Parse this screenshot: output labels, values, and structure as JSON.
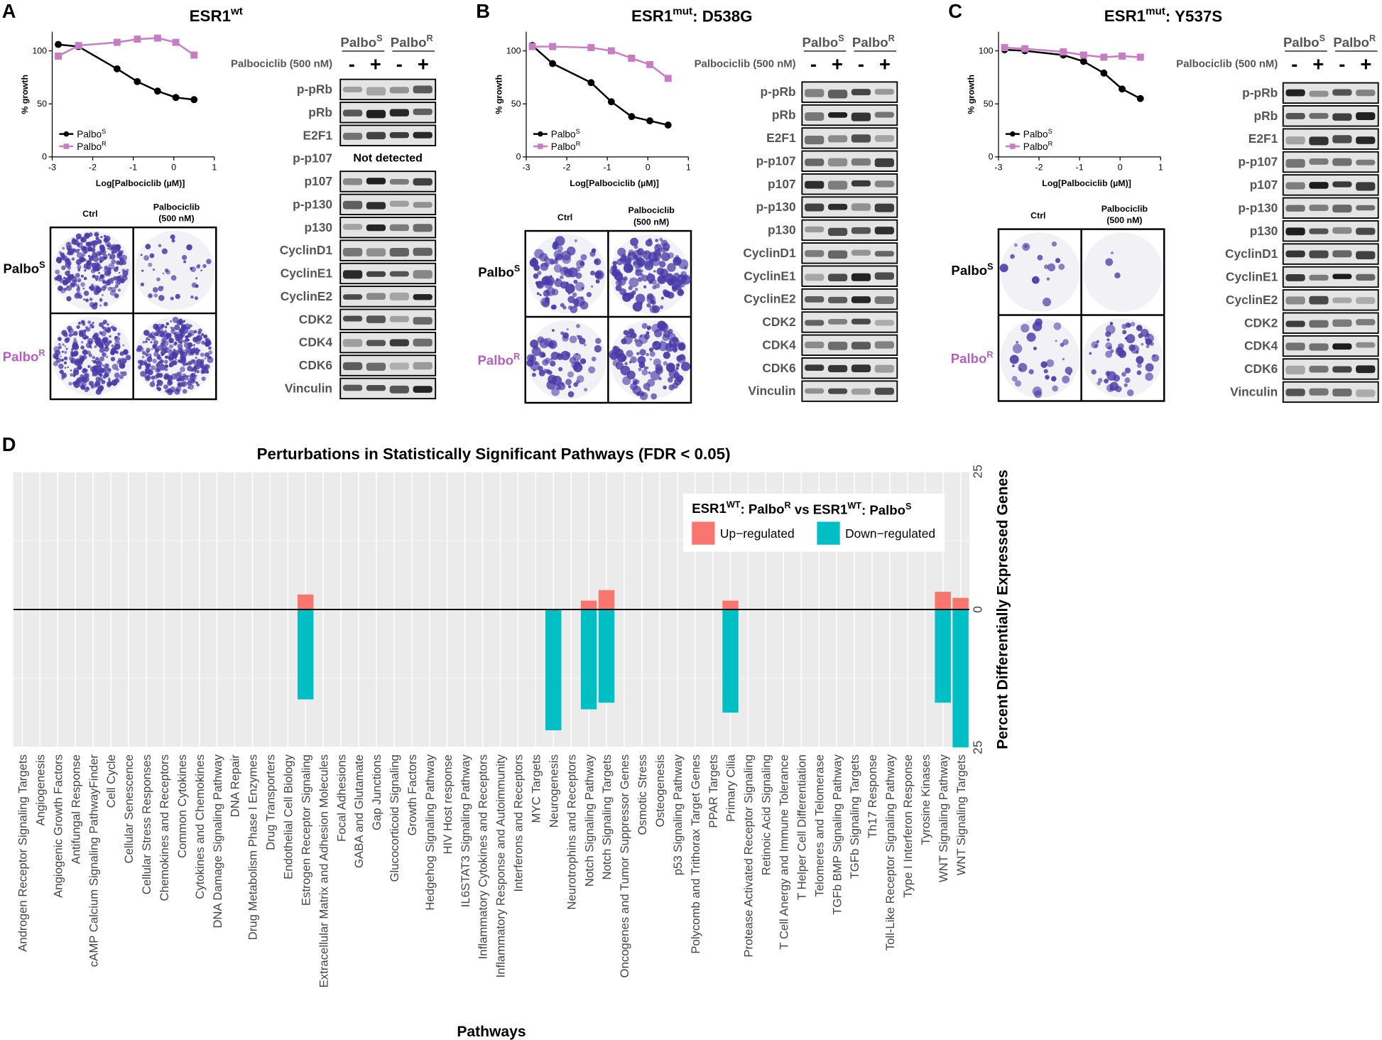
{
  "panels": [
    {
      "letter": "A",
      "title": [
        "ESR1",
        {
          "sup": "wt"
        }
      ],
      "colony": {
        "ctrl": "Ctrl",
        "treat": [
          "Palbociclib",
          "(500 nM)"
        ],
        "rows": [
          [
            "Palbo",
            {
              "sup": "S"
            }
          ],
          [
            "Palbo",
            {
              "sup": "R"
            }
          ]
        ]
      },
      "blot": {
        "headers": [
          [
            "Palbo",
            {
              "sup": "S"
            }
          ],
          [
            "Palbo",
            {
              "sup": "R"
            }
          ]
        ],
        "treatment": "Palbociclib (500 nM)",
        "signs": [
          "-",
          "+",
          "-",
          "+"
        ],
        "rows": [
          "p-pRb",
          "pRb",
          "E2F1",
          {
            "label": "p-p107",
            "text": "Not detected"
          },
          "p107",
          "p-p130",
          "p130",
          "CyclinD1",
          "CyclinE1",
          "CyclinE2",
          "CDK2",
          "CDK4",
          "CDK6",
          "Vinculin"
        ]
      }
    },
    {
      "letter": "B",
      "title": [
        "ESR1",
        {
          "sup": "mut"
        },
        ": D538G"
      ],
      "colony": {
        "ctrl": "Ctrl",
        "treat": [
          "Palbociclib",
          "(500 nM)"
        ],
        "rows": [
          [
            "Palbo",
            {
              "sup": "S"
            }
          ],
          [
            "Palbo",
            {
              "sup": "R"
            }
          ]
        ]
      },
      "blot": {
        "headers": [
          [
            "Palbo",
            {
              "sup": "S"
            }
          ],
          [
            "Palbo",
            {
              "sup": "R"
            }
          ]
        ],
        "treatment": "Palbociclib (500 nM)",
        "signs": [
          "-",
          "+",
          "-",
          "+"
        ],
        "rows": [
          "p-pRb",
          "pRb",
          "E2F1",
          "p-p107",
          "p107",
          "p-p130",
          "p130",
          "CyclinD1",
          "CyclinE1",
          "CyclinE2",
          "CDK2",
          "CDK4",
          "CDK6",
          "Vinculin"
        ]
      }
    },
    {
      "letter": "C",
      "title": [
        "ESR1",
        {
          "sup": "mut"
        },
        ": Y537S"
      ],
      "colony": {
        "ctrl": "Ctrl",
        "treat": [
          "Palbociclib",
          "(500 nM)"
        ],
        "rows": [
          [
            "Palbo",
            {
              "sup": "S"
            }
          ],
          [
            "Palbo",
            {
              "sup": "R"
            }
          ]
        ]
      },
      "blot": {
        "headers": [
          [
            "Palbo",
            {
              "sup": "S"
            }
          ],
          [
            "Palbo",
            {
              "sup": "R"
            }
          ]
        ],
        "treatment": "Palbociclib (500 nM)",
        "signs": [
          "-",
          "+",
          "-",
          "+"
        ],
        "rows": [
          "p-pRb",
          "pRb",
          "E2F1",
          "p-p107",
          "p107",
          "p-p130",
          "p130",
          "CyclinD1",
          "CyclinE1",
          "CyclinE2",
          "CDK2",
          "CDK4",
          "CDK6",
          "Vinculin"
        ]
      }
    },
    {
      "letter": "D"
    }
  ],
  "chart_data": [
    {
      "type": "line",
      "x_label": "Log[Palbociclib (µM)]",
      "y_label": "% growth",
      "x": [
        -2.85,
        -2.35,
        -1.4,
        -0.9,
        -0.4,
        0.05,
        0.5
      ],
      "xlim": [
        -3,
        1
      ],
      "ylim": [
        0,
        118
      ],
      "xticks": [
        -3,
        -2,
        -1,
        0,
        1
      ],
      "yticks": [
        0,
        50,
        100
      ],
      "series": [
        {
          "name": [
            "Palbo",
            {
              "sup": "S"
            }
          ],
          "color": "#000000",
          "marker": "circle",
          "values": [
            106,
            104,
            83,
            71,
            62,
            56,
            54
          ]
        },
        {
          "name": [
            "Palbo",
            {
              "sup": "R"
            }
          ],
          "color": "#c77cc4",
          "marker": "square",
          "values": [
            95,
            105,
            108,
            111,
            112,
            108,
            96
          ]
        }
      ]
    },
    {
      "type": "line",
      "x_label": "Log[Palbociclib (µM)]",
      "y_label": "% growth",
      "x": [
        -2.85,
        -2.35,
        -1.4,
        -0.9,
        -0.4,
        0.05,
        0.5
      ],
      "xlim": [
        -3,
        1
      ],
      "ylim": [
        0,
        118
      ],
      "xticks": [
        -3,
        -2,
        -1,
        0,
        1
      ],
      "yticks": [
        0,
        50,
        100
      ],
      "series": [
        {
          "name": [
            "Palbo",
            {
              "sup": "S"
            }
          ],
          "color": "#000000",
          "marker": "circle",
          "values": [
            105,
            88,
            70,
            52,
            38,
            34,
            30
          ]
        },
        {
          "name": [
            "Palbo",
            {
              "sup": "R"
            }
          ],
          "color": "#c77cc4",
          "marker": "square",
          "values": [
            104,
            104,
            103,
            100,
            93,
            87,
            74
          ]
        }
      ]
    },
    {
      "type": "line",
      "x_label": "Log[Palbociclib (µM)]",
      "y_label": "% growth",
      "x": [
        -2.85,
        -2.35,
        -1.4,
        -0.9,
        -0.4,
        0.05,
        0.5
      ],
      "xlim": [
        -3,
        1
      ],
      "ylim": [
        0,
        118
      ],
      "xticks": [
        -3,
        -2,
        -1,
        0,
        1
      ],
      "yticks": [
        0,
        50,
        100
      ],
      "series": [
        {
          "name": [
            "Palbo",
            {
              "sup": "S"
            }
          ],
          "color": "#000000",
          "marker": "circle",
          "values": [
            101,
            100,
            96,
            90,
            79,
            64,
            55
          ]
        },
        {
          "name": [
            "Palbo",
            {
              "sup": "R"
            }
          ],
          "color": "#c77cc4",
          "marker": "square",
          "values": [
            103,
            102,
            99,
            96,
            94,
            95,
            94
          ]
        }
      ]
    },
    {
      "type": "bar",
      "title": "Perturbations in Statistically Significant Pathways (FDR < 0.05)",
      "x_label": "Pathways",
      "y_label": "Percent Differentially Expressed Genes",
      "legend_title": [
        "ESR1",
        {
          "sup": "WT"
        },
        ": Palbo",
        {
          "sup": "R"
        },
        " vs ESR1",
        {
          "sup": "WT"
        },
        ": Palbo",
        {
          "sup": "S"
        }
      ],
      "ylim": [
        -25,
        25
      ],
      "yticks": [
        {
          "value": -25,
          "label": "25"
        },
        0,
        25
      ],
      "grid": true,
      "legend": "top-right",
      "categories": [
        "Androgen Receptor Signaling Targets",
        "Angiogenesis",
        "Angiogenic Growth Factors",
        "Antifungal Response",
        "cAMP Calcium Signaling PathwayFinder",
        "Cell Cycle",
        "Cellular Senescence",
        "Cellular Stress Responses",
        "Chemokines and Receptors",
        "Common Cytokines",
        "Cytokines and Chemokines",
        "DNA Damage Signaling Pathway",
        "DNA Repair",
        "Drug Metabolism Phase I Enzymes",
        "Drug Transporters",
        "Endothelial Cell Biology",
        "Estrogen Receptor Signaling",
        "Extracellular Matrix and Adhesion Molecules",
        "Focal Adhesions",
        "GABA and Glutamate",
        "Gap Junctions",
        "Glucocorticoid Signaling",
        "Growth Factors",
        "Hedgehog Signaling Pathway",
        "HIV Host response",
        "IL6STAT3 Signaling Pathway",
        "Inflammatory Cytokines and Receptors",
        "Inflammatory Response and Autoimmunity",
        "Interferons and Receptors",
        "MYC Targets",
        "Neurogenesis",
        "Neurotrophins and Receptors",
        "Notch Signaling Pathway",
        "Notch Signaling Targets",
        "Oncogenes and Tumor Suppressor Genes",
        "Osmotic Stress",
        "Osteogenesis",
        "p53 Signaling Pathway",
        "Polycomb and Trithorax Target Genes",
        "PPAR Targets",
        "Primary Cilia",
        "Protease Activated Receptor Signaling",
        "Retinoic Acid Signaling",
        "T Cell Anergy and Immune Tolerance",
        "T Helper Cell Differentiation",
        "Telomeres and Telomerase",
        "TGFb BMP Signaling Pathway",
        "TGFb Signaling Targets",
        "Th17 Response",
        "Toll-Like Receptor Signaling Pathway",
        "Type I Interferon Response",
        "Tyrosine Kinases",
        "WNT Signaling Pathway",
        "WNT Signaling Targets"
      ],
      "series": [
        {
          "name": "Up−regulated",
          "color": "#f8766d",
          "values": [
            0,
            0,
            0,
            0,
            0,
            0,
            0,
            0,
            0,
            0,
            0,
            0,
            0,
            0,
            0,
            0,
            2.7,
            0,
            0,
            0,
            0,
            0,
            0,
            0,
            0,
            0,
            0,
            0,
            0,
            0,
            0,
            0,
            1.6,
            3.5,
            0,
            0,
            0,
            0,
            0,
            0,
            1.6,
            0,
            0,
            0,
            0,
            0,
            0,
            0,
            0,
            0,
            0,
            0,
            3.2,
            2.1
          ]
        },
        {
          "name": "Down−regulated",
          "color": "#00bfc4",
          "values": [
            0,
            0,
            0,
            0,
            0,
            0,
            0,
            0,
            0,
            0,
            0,
            0,
            0,
            0,
            0,
            0,
            -16.3,
            0,
            0,
            0,
            0,
            0,
            0,
            0,
            0,
            0,
            0,
            0,
            0,
            0,
            -21.9,
            0,
            -18.1,
            -16.9,
            0,
            0,
            0,
            0,
            0,
            0,
            -18.7,
            0,
            0,
            0,
            0,
            0,
            0,
            0,
            0,
            0,
            0,
            0,
            -16.9,
            -25
          ]
        }
      ]
    }
  ]
}
